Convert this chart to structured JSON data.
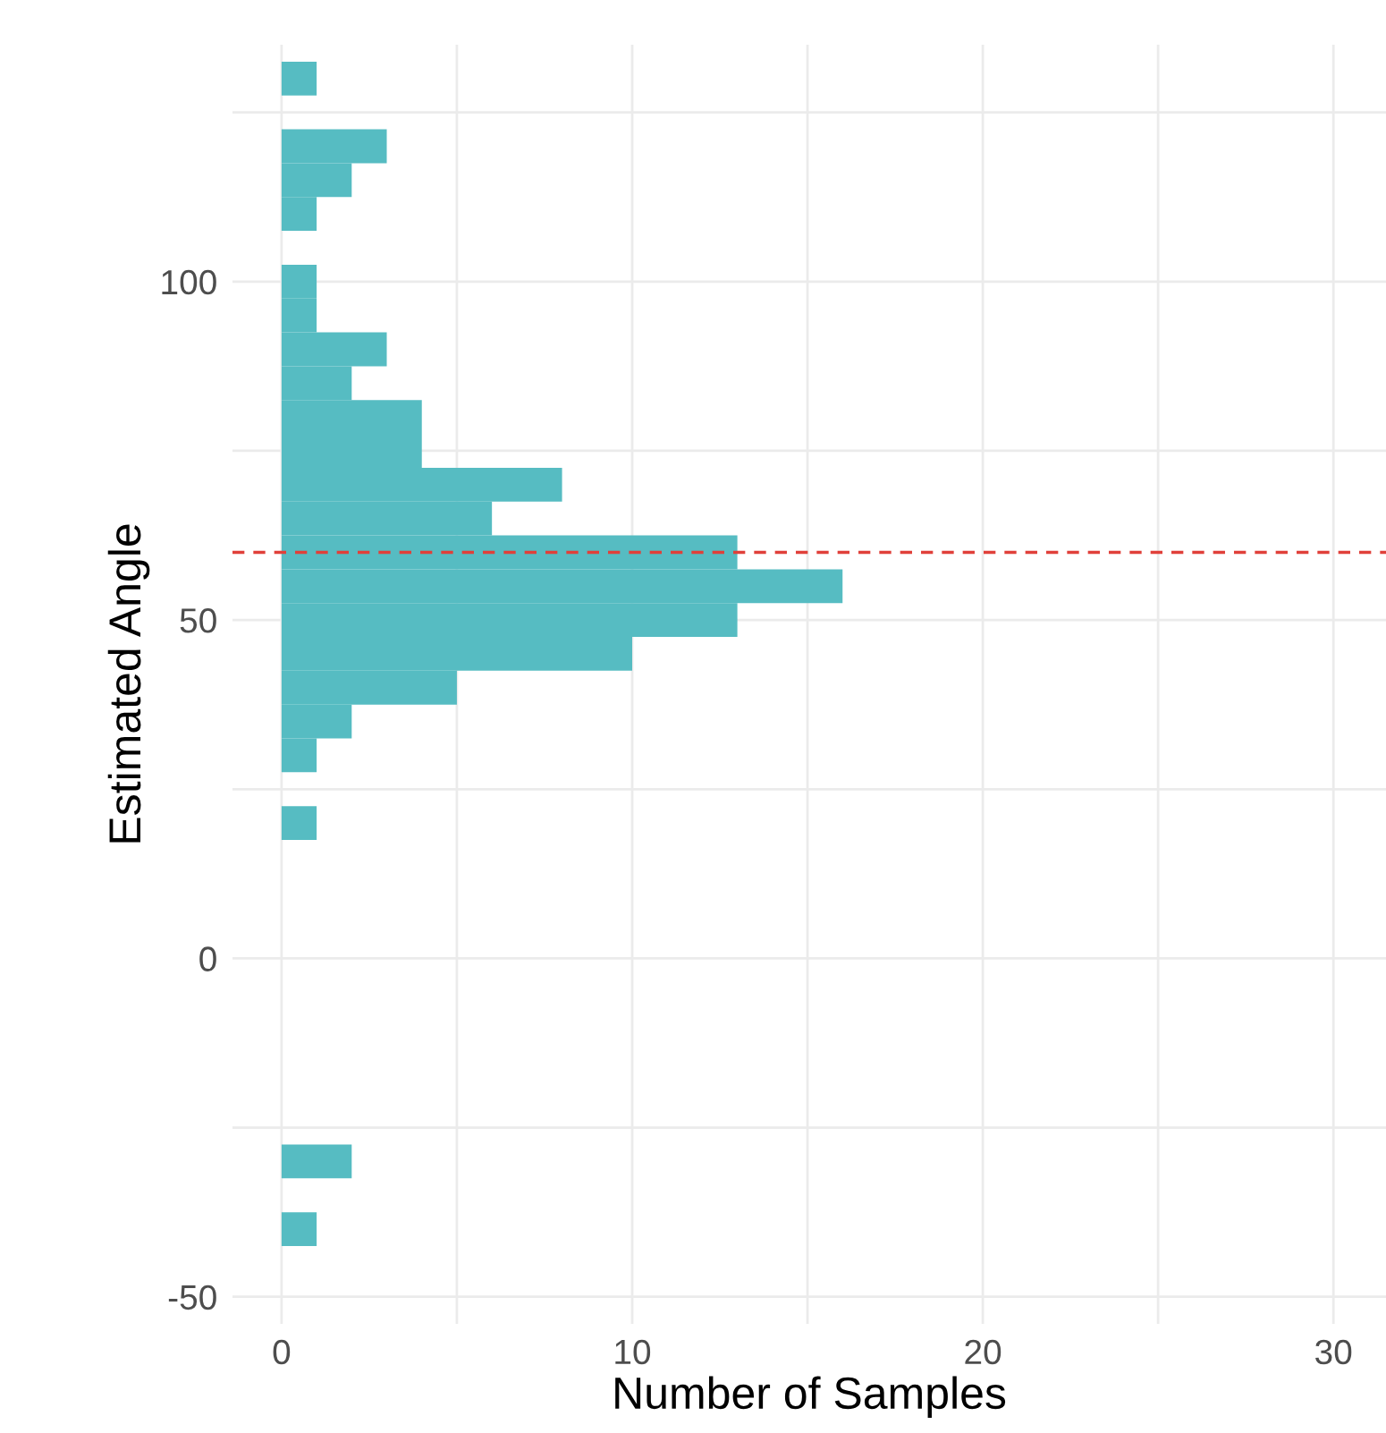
{
  "chart_data": {
    "type": "histogram",
    "orientation": "horizontal",
    "xlabel": "Number of Samples",
    "ylabel": "Estimated Angle",
    "bins": [
      -42.5,
      -37.5,
      -32.5,
      -27.5,
      -22.5,
      -17.5,
      -12.5,
      -7.5,
      -2.5,
      2.5,
      7.5,
      12.5,
      17.5,
      22.5,
      27.5,
      32.5,
      37.5,
      42.5,
      47.5,
      52.5,
      57.5,
      62.5,
      67.5,
      72.5,
      77.5,
      82.5,
      87.5,
      92.5,
      97.5,
      102.5,
      107.5,
      112.5,
      117.5,
      122.5,
      127.5,
      132.5
    ],
    "values": [
      1,
      0,
      2,
      0,
      0,
      0,
      0,
      0,
      0,
      0,
      0,
      0,
      1,
      0,
      1,
      2,
      5,
      10,
      13,
      16,
      13,
      6,
      8,
      4,
      4,
      2,
      3,
      1,
      1,
      0,
      1,
      2,
      3,
      0,
      1
    ],
    "color": "#56bcc2",
    "xlim": [
      -1.4,
      31.5
    ],
    "ylim": [
      -54,
      135
    ],
    "xticks": [
      0,
      {
        "value": 5,
        "label": null
      },
      10,
      {
        "value": 15,
        "label": null
      },
      20,
      {
        "value": 25,
        "label": null
      },
      30
    ],
    "yticks": [
      -50,
      {
        "value": -25,
        "label": null
      },
      0,
      {
        "value": 25,
        "label": null
      },
      50,
      {
        "value": 75,
        "label": null
      },
      100,
      {
        "value": 125,
        "label": null
      }
    ],
    "grid": true,
    "ref_lines": [
      {
        "axis": "y",
        "value": 60,
        "color": "#e0403a",
        "line_style": "dashed"
      }
    ]
  }
}
